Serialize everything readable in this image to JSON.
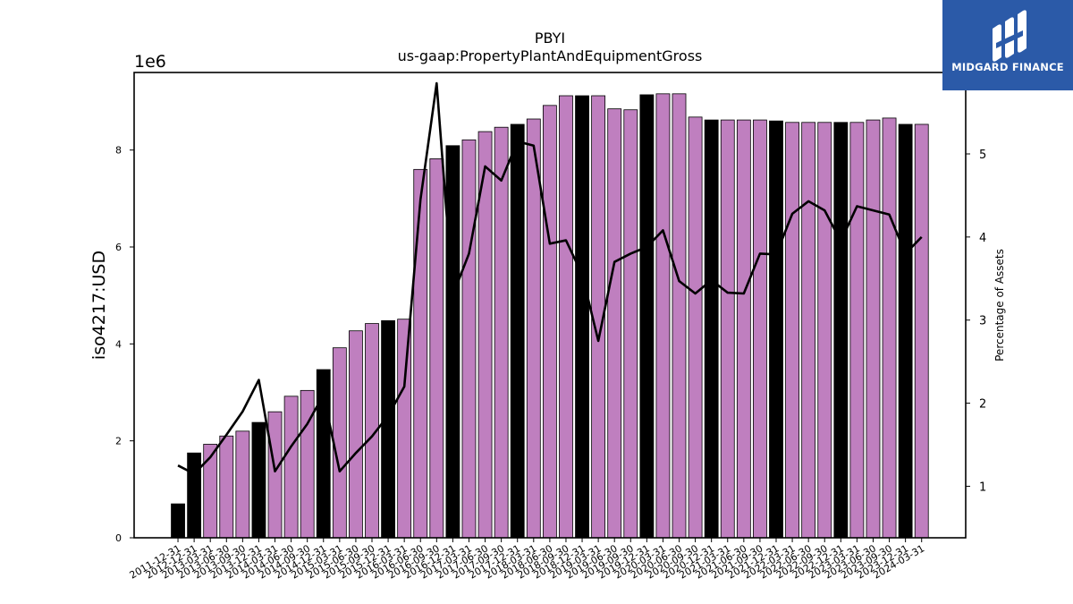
{
  "logo": {
    "text": "MIDGARD FINANCE"
  },
  "colors": {
    "bar_regular": "#bf7fbf",
    "bar_highlight": "#000000",
    "line": "#000000",
    "logo_bg": "#2b5aa8"
  },
  "chart_data": {
    "type": "bar",
    "title": "PBYI",
    "subtitle": "us-gaap:PropertyPlantAndEquipmentGross",
    "ylabel": "iso4217:USD",
    "y_offset_label": "1e6",
    "y2label": "Percentage of Assets",
    "ylim": [
      0,
      9600000
    ],
    "y2lim": [
      0.38,
      5.98
    ],
    "yticks": [
      0,
      2000000,
      4000000,
      6000000,
      8000000
    ],
    "ytick_labels": [
      "0",
      "2",
      "4",
      "6",
      "8"
    ],
    "y2ticks": [
      1,
      2,
      3,
      4,
      5
    ],
    "categories": [
      "2011-12-31",
      "2012-12-31",
      "2013-03-31",
      "2013-06-30",
      "2013-09-30",
      "2013-12-31",
      "2014-03-31",
      "2014-06-30",
      "2014-09-30",
      "2014-12-31",
      "2015-03-31",
      "2015-06-30",
      "2015-09-30",
      "2015-12-31",
      "2016-03-31",
      "2016-06-30",
      "2016-09-30",
      "2016-12-31",
      "2017-03-31",
      "2017-06-30",
      "2017-09-30",
      "2017-12-31",
      "2018-03-31",
      "2018-06-30",
      "2018-09-30",
      "2018-12-31",
      "2019-03-31",
      "2019-06-30",
      "2019-09-30",
      "2019-12-31",
      "2020-03-31",
      "2020-06-30",
      "2020-09-30",
      "2020-12-31",
      "2021-03-31",
      "2021-06-30",
      "2021-09-30",
      "2021-12-31",
      "2022-03-31",
      "2022-06-30",
      "2022-09-30",
      "2022-12-31",
      "2023-03-31",
      "2023-06-30",
      "2023-09-30",
      "2023-12-31",
      "2024-03-31"
    ],
    "series": [
      {
        "type": "bar",
        "values": [
          700000,
          1750000,
          1930000,
          2100000,
          2200000,
          2380000,
          2600000,
          2920000,
          3040000,
          3470000,
          3920000,
          4270000,
          4420000,
          4480000,
          4510000,
          7600000,
          7820000,
          8090000,
          8210000,
          8380000,
          8470000,
          8530000,
          8640000,
          8920000,
          9120000,
          9120000,
          9120000,
          8850000,
          8830000,
          9140000,
          9160000,
          9160000,
          8680000,
          8620000,
          8620000,
          8620000,
          8620000,
          8600000,
          8570000,
          8570000,
          8570000,
          8570000,
          8570000,
          8620000,
          8660000,
          8530000,
          8530000
        ],
        "highlight": [
          true,
          true,
          false,
          false,
          false,
          true,
          false,
          false,
          false,
          true,
          false,
          false,
          false,
          true,
          false,
          false,
          false,
          true,
          false,
          false,
          false,
          true,
          false,
          false,
          false,
          true,
          false,
          false,
          false,
          true,
          false,
          false,
          false,
          true,
          false,
          false,
          false,
          true,
          false,
          false,
          false,
          true,
          false,
          false,
          false,
          true,
          false
        ]
      },
      {
        "type": "line",
        "axis": "right",
        "values": [
          1.25,
          1.15,
          1.35,
          1.62,
          1.9,
          2.28,
          1.18,
          1.48,
          1.75,
          2.1,
          1.18,
          1.4,
          1.6,
          1.85,
          2.2,
          4.45,
          5.85,
          3.3,
          3.8,
          4.85,
          4.68,
          5.15,
          5.1,
          3.92,
          3.96,
          3.55,
          2.75,
          3.7,
          3.8,
          3.88,
          4.08,
          3.47,
          3.32,
          3.48,
          3.33,
          3.32,
          3.8,
          3.79,
          4.28,
          4.43,
          4.32,
          3.95,
          4.37,
          4.32,
          4.27,
          3.8,
          4.0
        ]
      }
    ]
  }
}
